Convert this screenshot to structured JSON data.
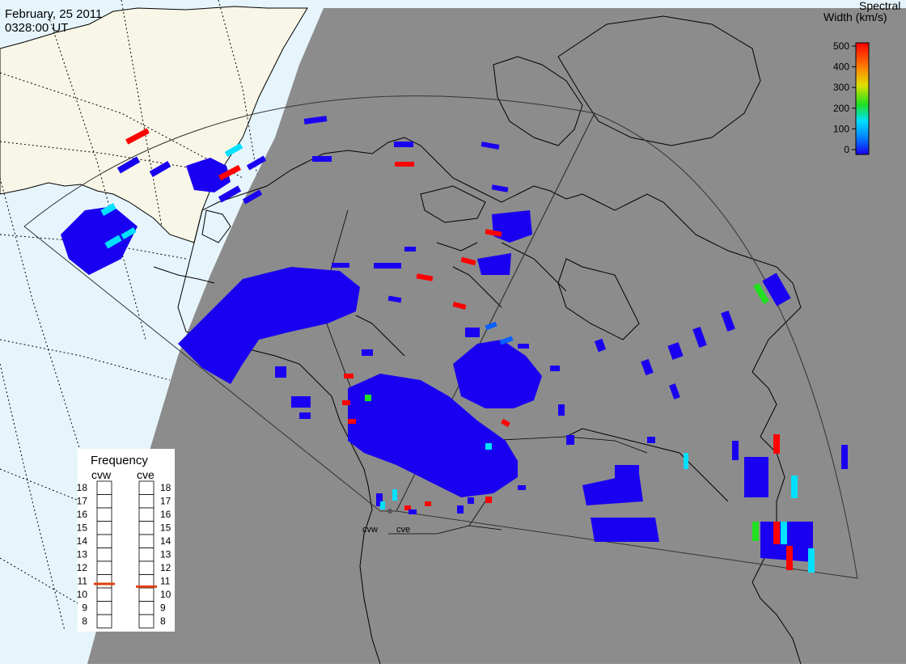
{
  "header": {
    "date": "February, 25 2011",
    "time": "0328:00 UT"
  },
  "colorbar": {
    "title_line1": "Spectral",
    "title_line2": "Width (km/s)",
    "ticks": [
      "500",
      "400",
      "300",
      "200",
      "100",
      "0"
    ],
    "min": 0,
    "max": 500
  },
  "frequency_panel": {
    "title": "Frequency",
    "radars": [
      {
        "name": "cvw",
        "value": 10.8
      },
      {
        "name": "cve",
        "value": 10.6
      }
    ],
    "ticks": [
      "18",
      "17",
      "16",
      "15",
      "14",
      "13",
      "12",
      "11",
      "10",
      "9",
      "8"
    ]
  },
  "stations": [
    {
      "name": "cvw"
    },
    {
      "name": "cve"
    }
  ],
  "colors": {
    "night_shade": "#8c8c8c",
    "day_ocean": "#e6f5fc",
    "day_land": "#f8f6e6",
    "low_width": "#1a00f0",
    "mid_width": "#00e0ff",
    "high_width": "#ff0000",
    "green_width": "#20e020",
    "marker": "#e04010"
  }
}
